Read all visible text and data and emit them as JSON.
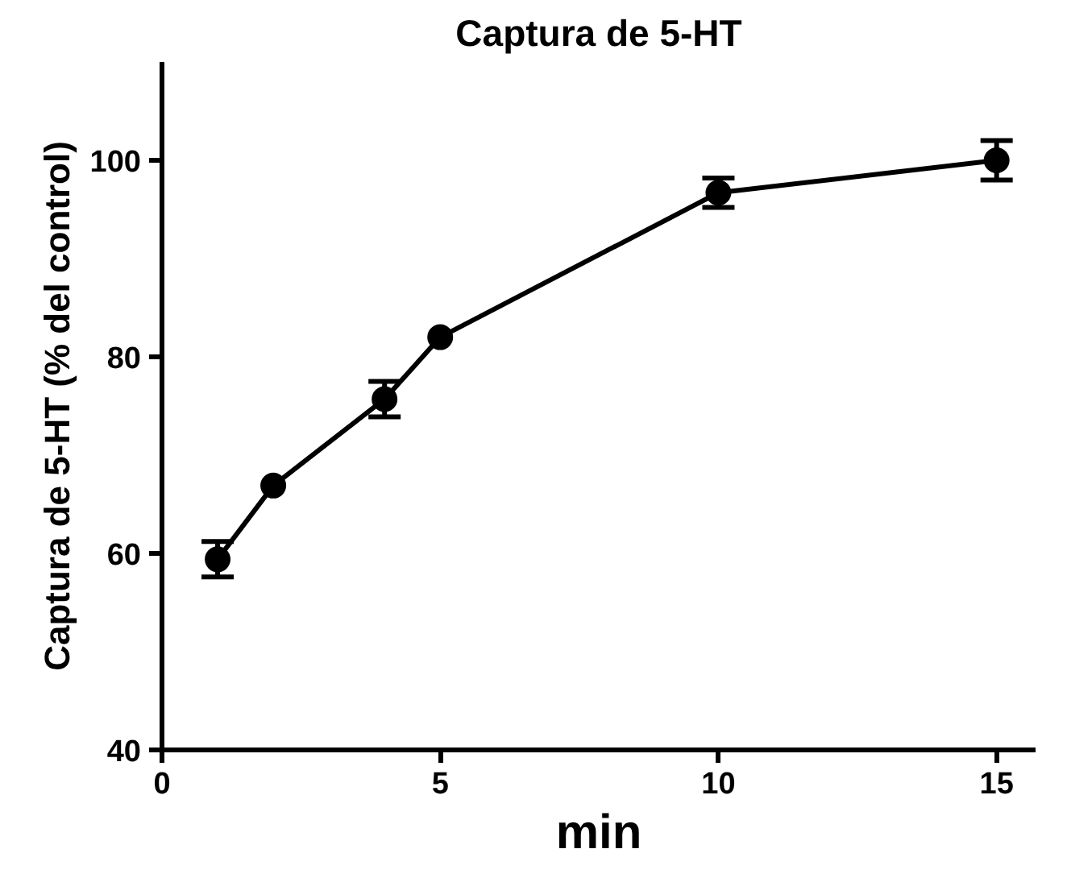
{
  "chart_data": {
    "type": "line",
    "title": "Captura de 5-HT",
    "xlabel": "min",
    "ylabel": "Captura de 5-HT (% del control)",
    "x": [
      1,
      2,
      4,
      5,
      10,
      15
    ],
    "series": [
      {
        "color": "#000000",
        "values": [
          59.4,
          66.9,
          75.7,
          82.0,
          96.7,
          100.0
        ],
        "errors": [
          1.8,
          null,
          1.8,
          null,
          1.5,
          2.0
        ]
      }
    ],
    "xlim": [
      0,
      15.7
    ],
    "ylim": [
      40,
      110
    ],
    "xticks": [
      0,
      5,
      10,
      15
    ],
    "yticks": [
      40,
      60,
      80,
      100
    ],
    "grid": false,
    "marker": "circle",
    "line_style": "solid"
  }
}
